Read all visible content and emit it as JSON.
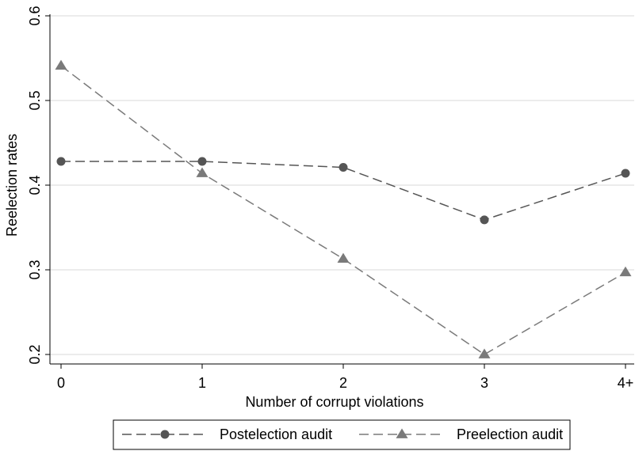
{
  "chart_data": {
    "type": "line",
    "title": "",
    "xlabel": "Number of corrupt violations",
    "ylabel": "Reelection rates",
    "categories": [
      "0",
      "1",
      "2",
      "3",
      "4+"
    ],
    "ylim": [
      0.2,
      0.6
    ],
    "yticks": [
      "0.2",
      "0.3",
      "0.4",
      "0.5",
      "0.6"
    ],
    "grid": true,
    "legend_position": "bottom",
    "series": [
      {
        "name": "Postelection audit",
        "values": [
          0.428,
          0.428,
          0.421,
          0.359,
          0.414
        ],
        "marker": "circle",
        "color": "#555555",
        "dash": "dashed"
      },
      {
        "name": "Preelection audit",
        "values": [
          0.541,
          0.414,
          0.313,
          0.2,
          0.297
        ],
        "marker": "triangle",
        "color": "#7a7a7a",
        "dash": "dashed"
      }
    ]
  }
}
